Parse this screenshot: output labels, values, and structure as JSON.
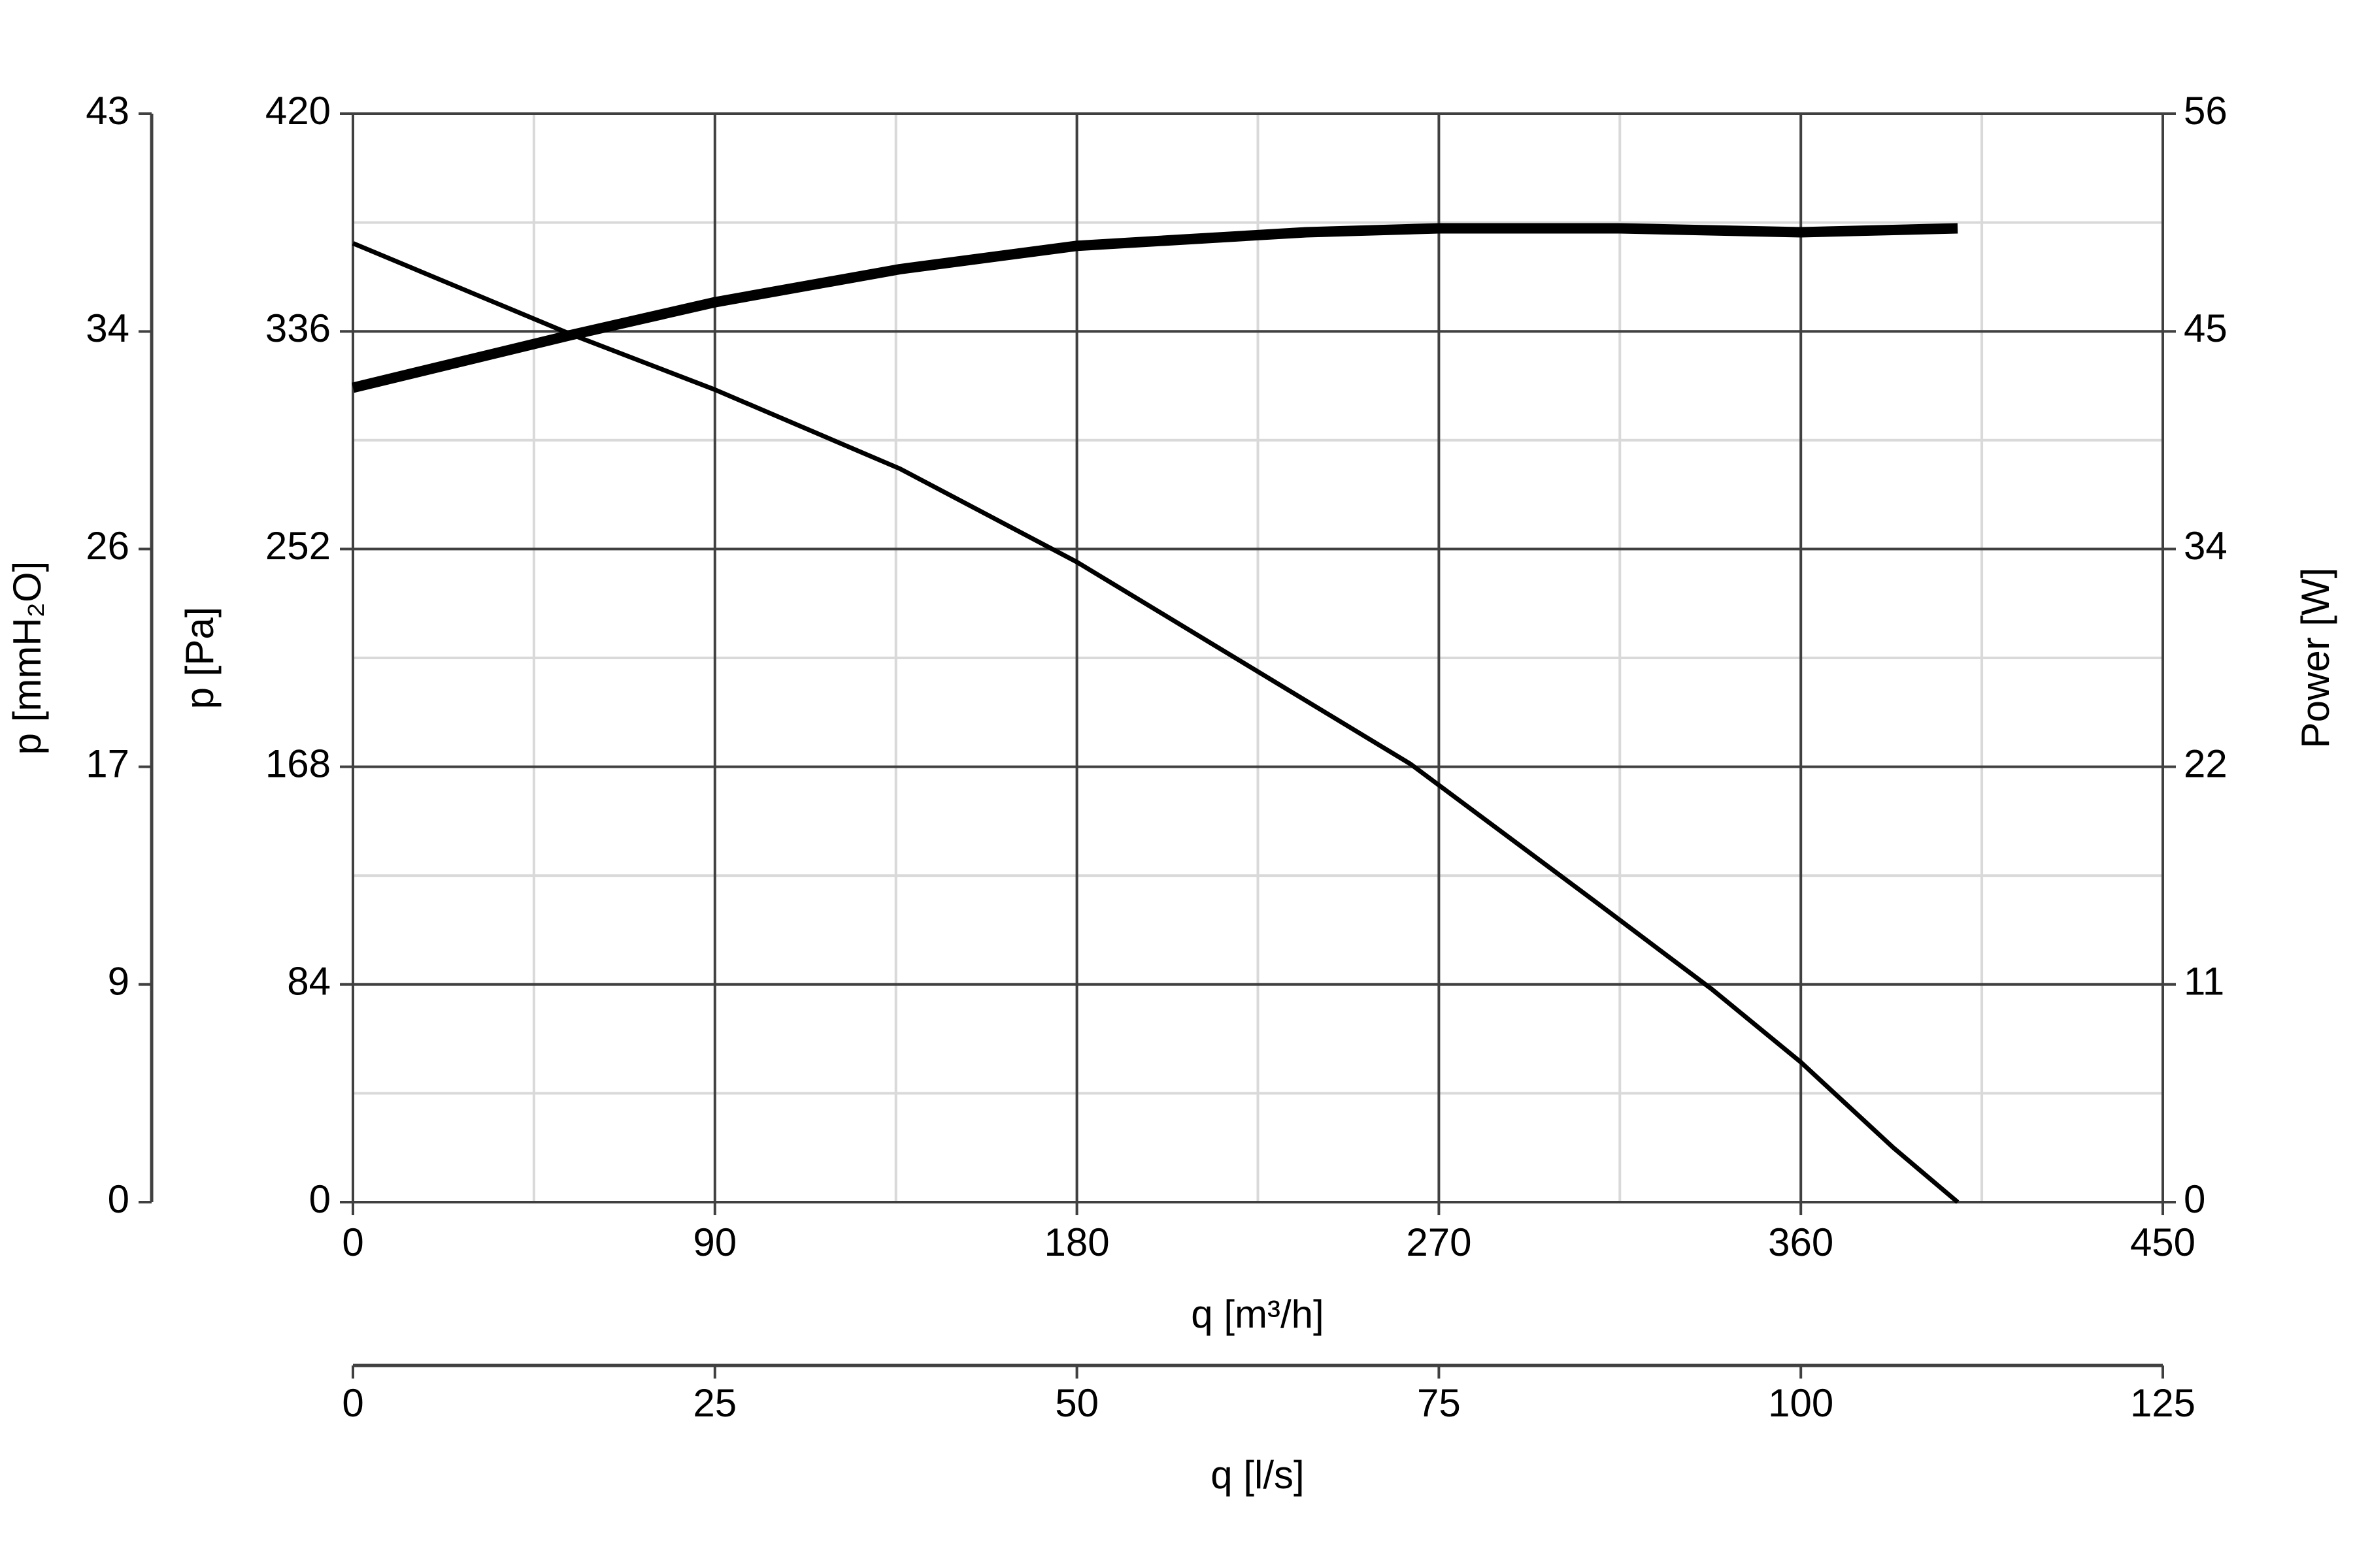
{
  "chart_data": {
    "type": "line",
    "xlabel": "q [m³/h]",
    "ylabel": "p [Pa]",
    "y2label": "Power [W]",
    "y3label": "p [mmH₂O]",
    "x2label": "q [l/s]",
    "xlim": [
      0,
      450
    ],
    "xticks": [
      0,
      90,
      180,
      270,
      360,
      450
    ],
    "x2lim": [
      0,
      125
    ],
    "x2ticks": [
      0,
      25,
      50,
      75,
      100,
      125
    ],
    "ylim": [
      0,
      420
    ],
    "yticks": [
      0,
      84,
      168,
      252,
      336,
      420
    ],
    "y2lim": [
      0,
      56
    ],
    "y2ticks": [
      0,
      {
        "value": 11.2,
        "label": "11"
      },
      {
        "value": 22.4,
        "label": "22"
      },
      {
        "value": 33.6,
        "label": "34"
      },
      {
        "value": 44.8,
        "label": "45"
      },
      56
    ],
    "y3lim": [
      0,
      42.83
    ],
    "y3ticks": [
      0,
      {
        "value": 8.566,
        "label": "9"
      },
      {
        "value": 17.13,
        "label": "17"
      },
      {
        "value": 25.7,
        "label": "26"
      },
      {
        "value": 34.26,
        "label": "34"
      },
      {
        "value": 42.83,
        "label": "43"
      }
    ],
    "grid": true,
    "series": [
      {
        "color": "#000000",
        "x": [
          0,
          54,
          90,
          136,
          180,
          213,
          263,
          308,
          338,
          360,
          383,
          399
        ],
        "values": [
          370,
          335,
          313.5,
          283,
          247,
          216,
          169,
          117,
          82,
          54,
          21,
          0
        ]
      },
      {
        "color": "#000000",
        "axis": "y2",
        "x": [
          0,
          54,
          90,
          136,
          180,
          237,
          270,
          315,
          360,
          399
        ],
        "values": [
          41.9,
          44.6,
          46.3,
          48.0,
          49.2,
          49.9,
          50.1,
          50.1,
          49.9,
          50.1
        ]
      }
    ]
  }
}
